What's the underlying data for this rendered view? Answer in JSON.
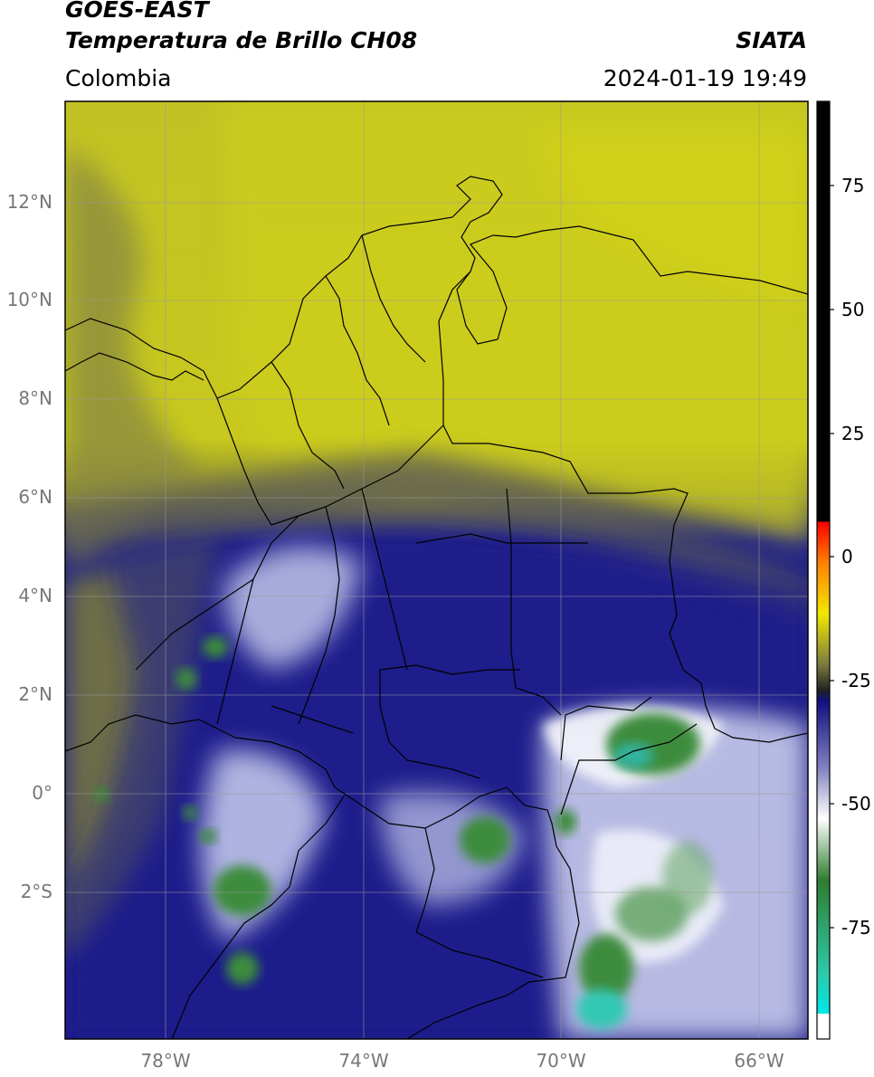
{
  "header": {
    "line1": "GOES-EAST",
    "line2": "Temperatura de Brillo CH08",
    "region": "Colombia",
    "brand": "SIATA",
    "timestamp": "2024-01-19 19:49"
  },
  "map": {
    "lat_ticks": [
      "12°N",
      "10°N",
      "8°N",
      "6°N",
      "4°N",
      "2°N",
      "0°",
      "2°S"
    ],
    "lon_ticks": [
      "78°W",
      "74°W",
      "70°W",
      "66°W"
    ],
    "gridlines": true,
    "colors": {
      "warm_yellow": "#c8c81e",
      "olive": "#7c7c3c",
      "deep_blue": "#1c1c8c",
      "pale_blue": "#b0b4e0",
      "cloud_white": "#ffffff",
      "cold_green": "#3c8c3c",
      "cyan_core": "#30c8b4"
    }
  },
  "colorbar": {
    "ticks": [
      "75",
      "50",
      "25",
      "0",
      "-25",
      "-50",
      "-75"
    ],
    "stops": [
      {
        "value": 90,
        "color": "#000000"
      },
      {
        "value": 8,
        "color": "#000000"
      },
      {
        "value": 7.9,
        "color": "#ff0000"
      },
      {
        "value": 0,
        "color": "#ff8000"
      },
      {
        "value": -10,
        "color": "#f0e800"
      },
      {
        "value": -20,
        "color": "#7a7a40"
      },
      {
        "value": -25,
        "color": "#202020"
      },
      {
        "value": -27,
        "color": "#101080"
      },
      {
        "value": -40,
        "color": "#8080c0"
      },
      {
        "value": -50,
        "color": "#ffffff"
      },
      {
        "value": -62,
        "color": "#2e7d2e"
      },
      {
        "value": -80,
        "color": "#2ec8a8"
      },
      {
        "value": -88,
        "color": "#00e8e8"
      },
      {
        "value": -88.1,
        "color": "#ffffff"
      },
      {
        "value": -93,
        "color": "#ffffff"
      }
    ],
    "min": -93,
    "max": 90
  }
}
